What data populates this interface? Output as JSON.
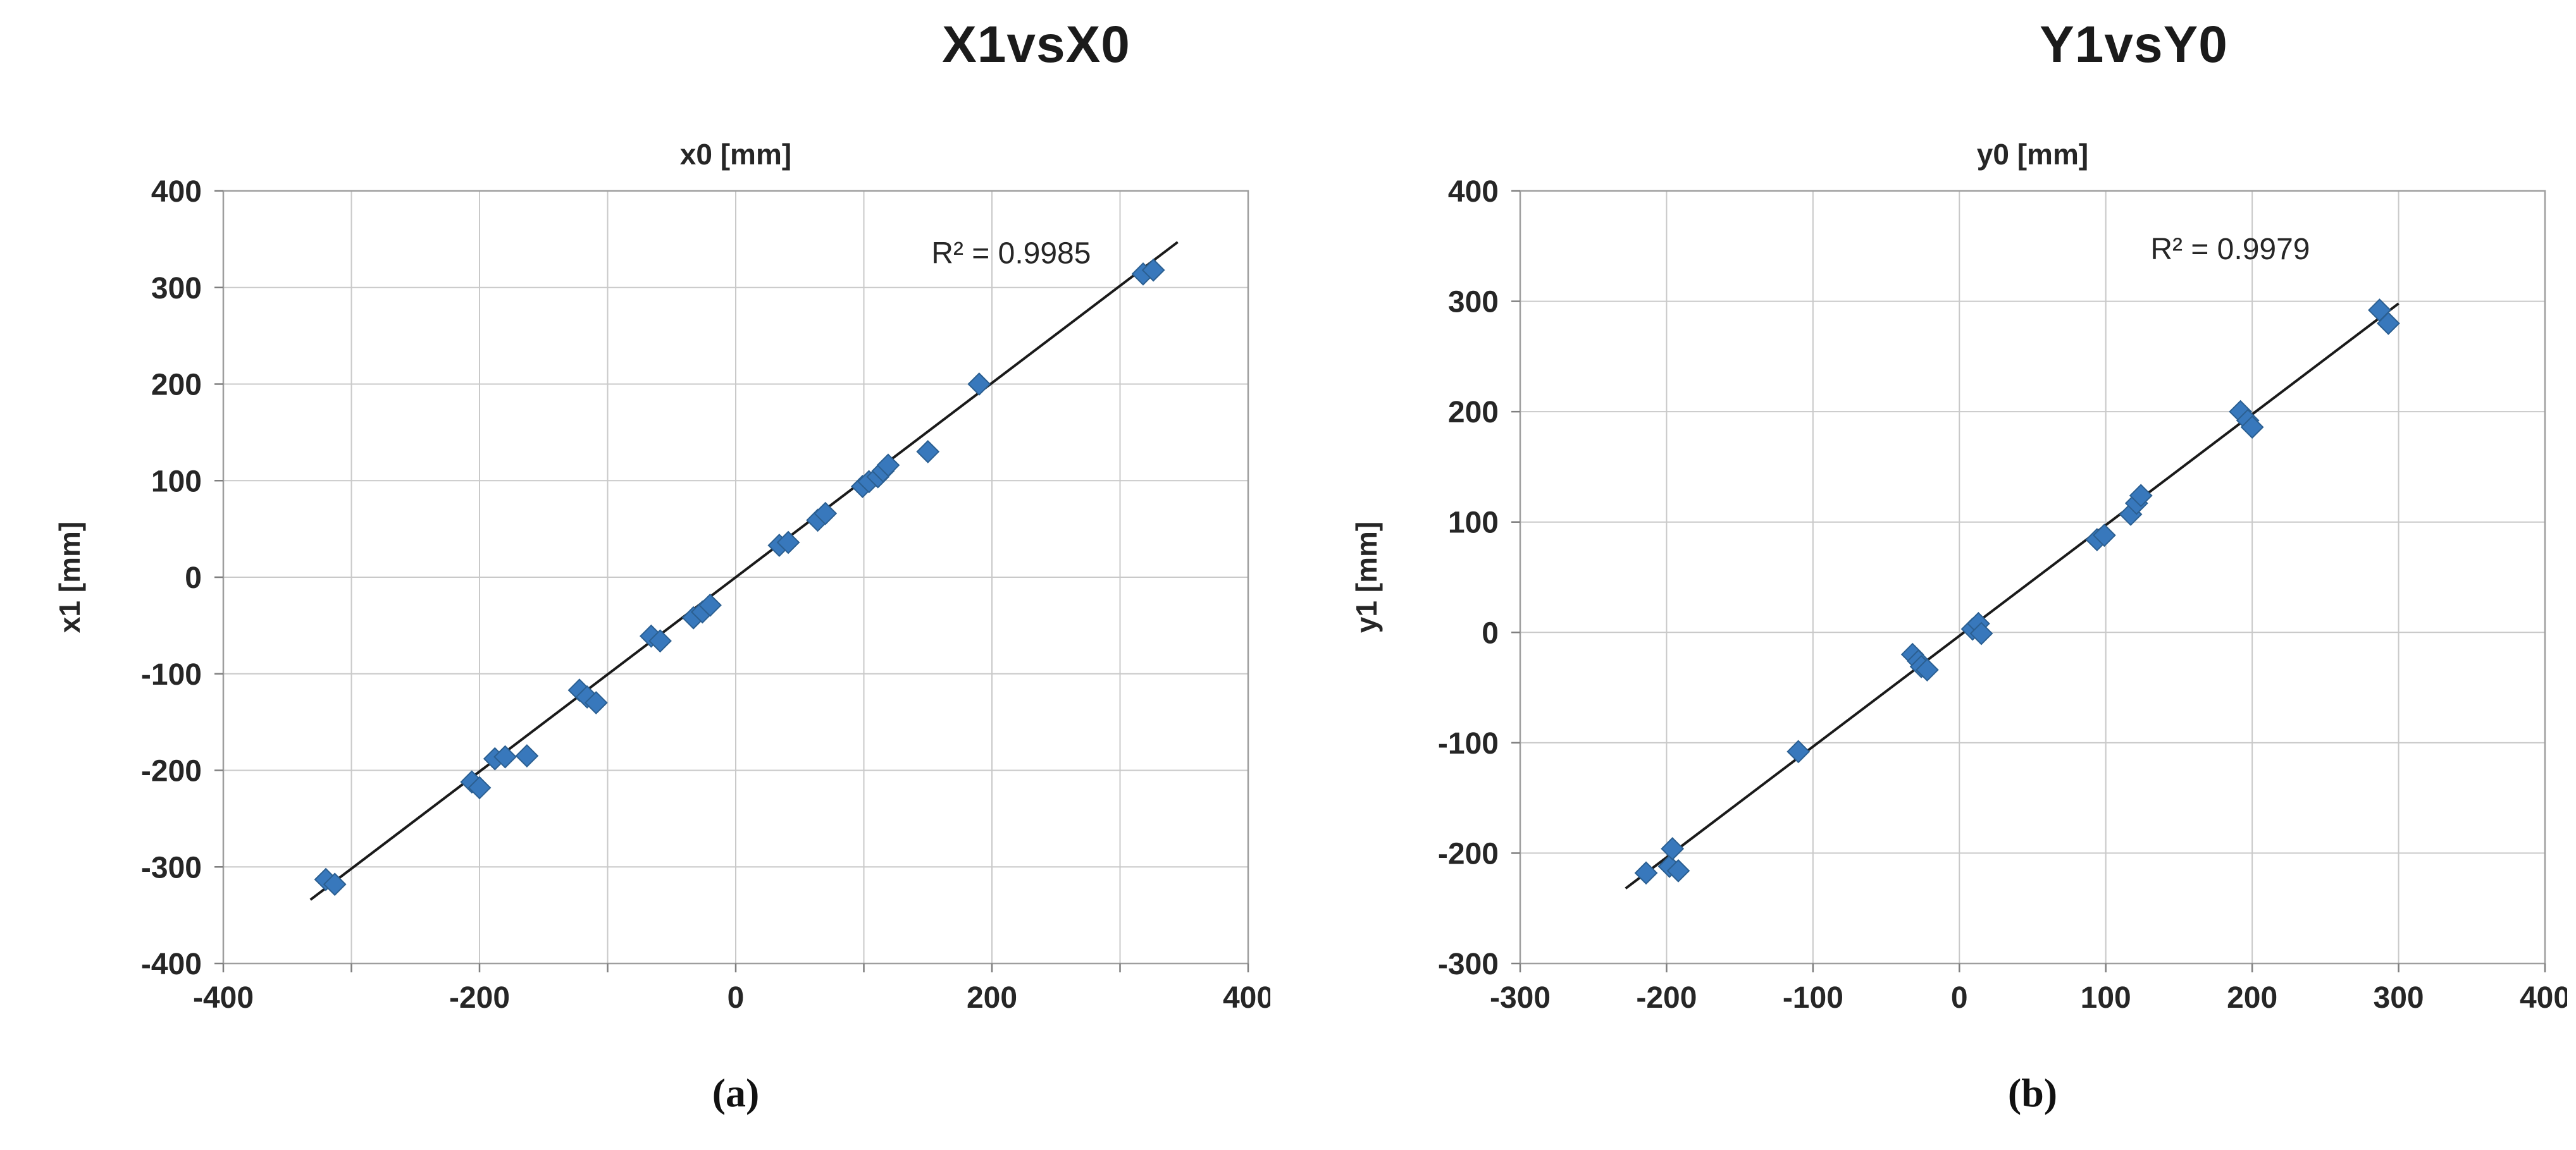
{
  "style": {
    "background": "#ffffff",
    "grid_color": "#c9c9c9",
    "border_color": "#9e9e9e",
    "tick_color": "#7f7f7f",
    "text_color": "#262626",
    "trendline_color": "#1a1a1a",
    "marker_fill": "#3878BC",
    "marker_edge": "#2b5f91"
  },
  "chart_data": [
    {
      "type": "scatter",
      "title": "X1vsX0",
      "caption": "(a)",
      "top_axis_label": "x0 [mm]",
      "ylabel": "x1 [mm]",
      "xlim": [
        -400,
        400
      ],
      "ylim": [
        -400,
        400
      ],
      "xticks": [
        -400,
        -200,
        0,
        200,
        400
      ],
      "yticks": [
        -400,
        -300,
        -200,
        -100,
        0,
        100,
        200,
        300,
        400
      ],
      "x_gridline_step": 100,
      "grid": true,
      "legend": "none",
      "annotation": "R² = 0.9985",
      "annotation_pos": [
        215,
        325
      ],
      "trendline": [
        [
          -332,
          -334
        ],
        [
          345,
          347
        ]
      ],
      "points": [
        [
          -320,
          -313
        ],
        [
          -313,
          -318
        ],
        [
          -206,
          -212
        ],
        [
          -200,
          -218
        ],
        [
          -188,
          -188
        ],
        [
          -180,
          -186
        ],
        [
          -163,
          -185
        ],
        [
          -122,
          -117
        ],
        [
          -116,
          -124
        ],
        [
          -109,
          -130
        ],
        [
          -66,
          -61
        ],
        [
          -59,
          -66
        ],
        [
          -33,
          -42
        ],
        [
          -26,
          -36
        ],
        [
          -20,
          -29
        ],
        [
          34,
          33
        ],
        [
          41,
          36
        ],
        [
          64,
          59
        ],
        [
          70,
          66
        ],
        [
          99,
          94
        ],
        [
          104,
          99
        ],
        [
          111,
          104
        ],
        [
          115,
          110
        ],
        [
          119,
          116
        ],
        [
          150,
          130
        ],
        [
          190,
          200
        ],
        [
          318,
          314
        ],
        [
          326,
          318
        ]
      ]
    },
    {
      "type": "scatter",
      "title": "Y1vsY0",
      "caption": "(b)",
      "top_axis_label": "y0 [mm]",
      "ylabel": "y1 [mm]",
      "xlim": [
        -300,
        400
      ],
      "ylim": [
        -300,
        400
      ],
      "xticks": [
        -300,
        -200,
        -100,
        0,
        100,
        200,
        300,
        400
      ],
      "yticks": [
        -300,
        -200,
        -100,
        0,
        100,
        200,
        300,
        400
      ],
      "x_gridline_step": 100,
      "grid": true,
      "legend": "none",
      "annotation": "R² = 0.9979",
      "annotation_pos": [
        185,
        338
      ],
      "trendline": [
        [
          -228,
          -232
        ],
        [
          300,
          298
        ]
      ],
      "points": [
        [
          -214,
          -218
        ],
        [
          -198,
          -212
        ],
        [
          -192,
          -216
        ],
        [
          -196,
          -196
        ],
        [
          -110,
          -108
        ],
        [
          -32,
          -20
        ],
        [
          -28,
          -26
        ],
        [
          -26,
          -31
        ],
        [
          -22,
          -34
        ],
        [
          9,
          3
        ],
        [
          13,
          8
        ],
        [
          15,
          -1
        ],
        [
          94,
          84
        ],
        [
          99,
          88
        ],
        [
          117,
          107
        ],
        [
          121,
          117
        ],
        [
          124,
          124
        ],
        [
          192,
          200
        ],
        [
          197,
          192
        ],
        [
          200,
          186
        ],
        [
          287,
          292
        ],
        [
          293,
          280
        ]
      ]
    }
  ]
}
